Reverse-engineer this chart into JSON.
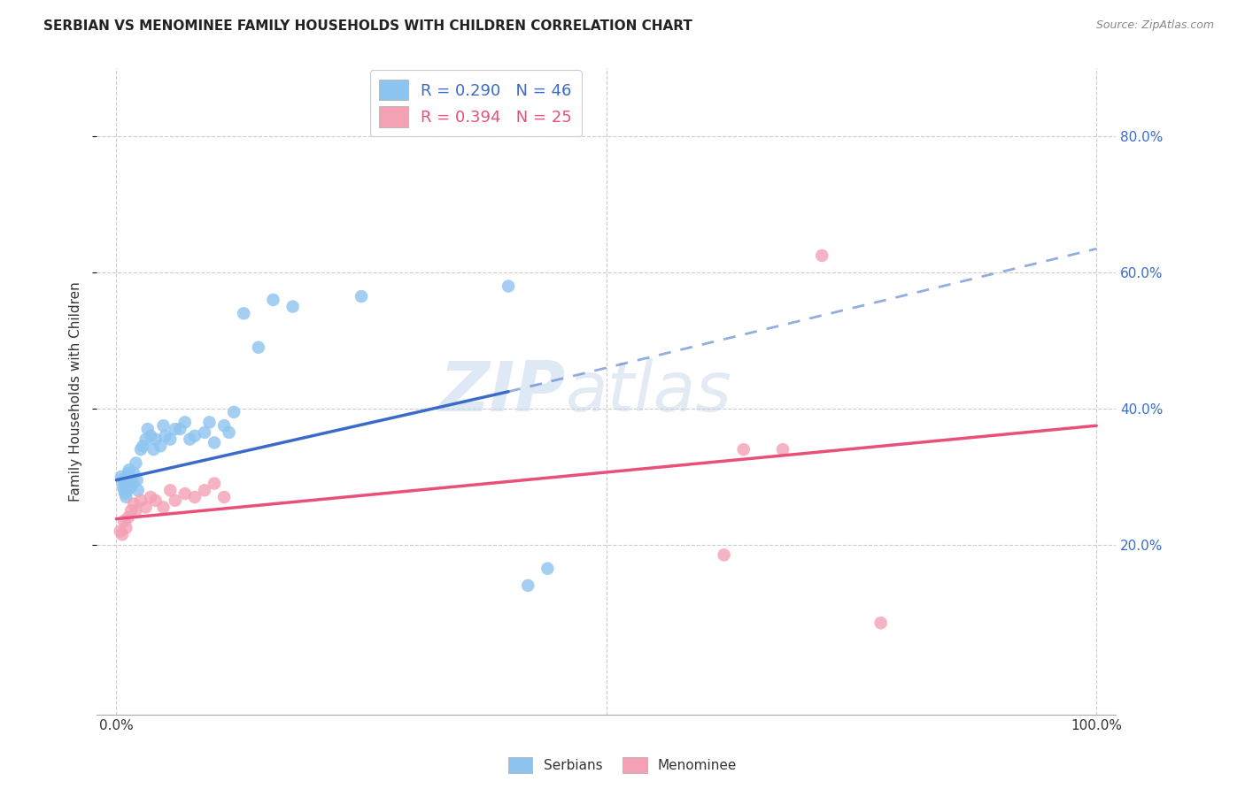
{
  "title": "SERBIAN VS MENOMINEE FAMILY HOUSEHOLDS WITH CHILDREN CORRELATION CHART",
  "source": "Source: ZipAtlas.com",
  "ylabel": "Family Households with Children",
  "xlim": [
    -0.02,
    1.02
  ],
  "ylim": [
    -0.05,
    0.9
  ],
  "ytick_labels": [
    "20.0%",
    "40.0%",
    "60.0%",
    "80.0%"
  ],
  "ytick_values": [
    0.2,
    0.4,
    0.6,
    0.8
  ],
  "xtick_labels": [
    "0.0%",
    "100.0%"
  ],
  "xtick_values": [
    0.0,
    1.0
  ],
  "grid_color": "#cccccc",
  "background_color": "#ffffff",
  "serbian_color": "#8DC4F0",
  "menominee_color": "#F4A0B5",
  "serbian_line_color": "#3B6BC9",
  "menominee_line_color": "#E8507A",
  "legend_serbian_label": "R = 0.290   N = 46",
  "legend_menominee_label": "R = 0.394   N = 25",
  "watermark_zip": "ZIP",
  "watermark_atlas": "atlas",
  "serbian_line_x0": 0.0,
  "serbian_line_y0": 0.295,
  "serbian_line_x1": 0.4,
  "serbian_line_y1": 0.425,
  "serbian_line_dash_x0": 0.4,
  "serbian_line_dash_y0": 0.425,
  "serbian_line_dash_x1": 1.0,
  "serbian_line_dash_y1": 0.635,
  "menominee_line_x0": 0.0,
  "menominee_line_y0": 0.238,
  "menominee_line_x1": 1.0,
  "menominee_line_y1": 0.375,
  "serbian_x": [
    0.005,
    0.006,
    0.007,
    0.008,
    0.009,
    0.01,
    0.011,
    0.012,
    0.013,
    0.014,
    0.015,
    0.017,
    0.018,
    0.02,
    0.021,
    0.022,
    0.025,
    0.027,
    0.03,
    0.032,
    0.035,
    0.038,
    0.04,
    0.045,
    0.048,
    0.05,
    0.055,
    0.06,
    0.065,
    0.07,
    0.075,
    0.08,
    0.09,
    0.095,
    0.1,
    0.11,
    0.115,
    0.12,
    0.13,
    0.145,
    0.16,
    0.18,
    0.25,
    0.4,
    0.42,
    0.44
  ],
  "serbian_y": [
    0.3,
    0.295,
    0.285,
    0.28,
    0.275,
    0.27,
    0.28,
    0.305,
    0.31,
    0.295,
    0.285,
    0.29,
    0.305,
    0.32,
    0.295,
    0.28,
    0.34,
    0.345,
    0.355,
    0.37,
    0.36,
    0.34,
    0.355,
    0.345,
    0.375,
    0.36,
    0.355,
    0.37,
    0.37,
    0.38,
    0.355,
    0.36,
    0.365,
    0.38,
    0.35,
    0.375,
    0.365,
    0.395,
    0.54,
    0.49,
    0.56,
    0.55,
    0.565,
    0.58,
    0.14,
    0.165
  ],
  "menominee_x": [
    0.004,
    0.006,
    0.008,
    0.01,
    0.012,
    0.015,
    0.018,
    0.02,
    0.025,
    0.03,
    0.035,
    0.04,
    0.048,
    0.055,
    0.06,
    0.07,
    0.08,
    0.09,
    0.1,
    0.11,
    0.62,
    0.64,
    0.68,
    0.72,
    0.78
  ],
  "menominee_y": [
    0.22,
    0.215,
    0.235,
    0.225,
    0.24,
    0.25,
    0.26,
    0.25,
    0.265,
    0.255,
    0.27,
    0.265,
    0.255,
    0.28,
    0.265,
    0.275,
    0.27,
    0.28,
    0.29,
    0.27,
    0.185,
    0.34,
    0.34,
    0.625,
    0.085
  ]
}
